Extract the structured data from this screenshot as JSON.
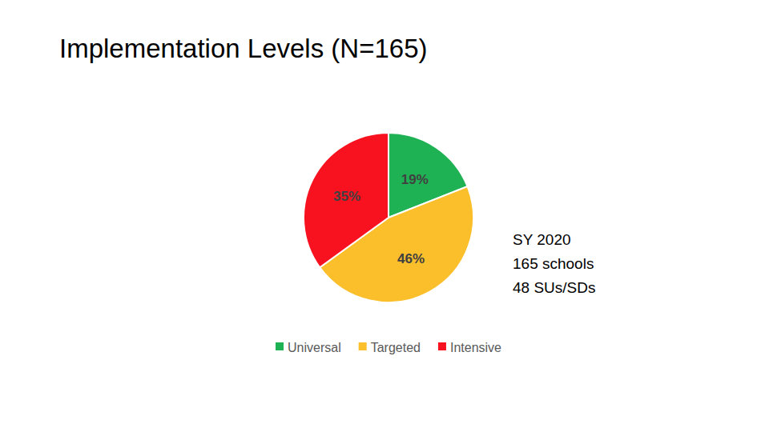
{
  "chart_data": {
    "type": "pie",
    "title": "Implementation Levels (N=165)",
    "categories": [
      "Universal",
      "Targeted",
      "Intensive"
    ],
    "values": [
      19,
      46,
      35
    ],
    "value_labels": [
      "19%",
      "46%",
      "35%"
    ],
    "colors": [
      "#1fb254",
      "#fbbf2c",
      "#f8121f"
    ],
    "data_labels": true,
    "legend": "bottom",
    "annotations": [
      "SY 2020",
      "165 schools",
      "48 SUs/SDs"
    ]
  }
}
